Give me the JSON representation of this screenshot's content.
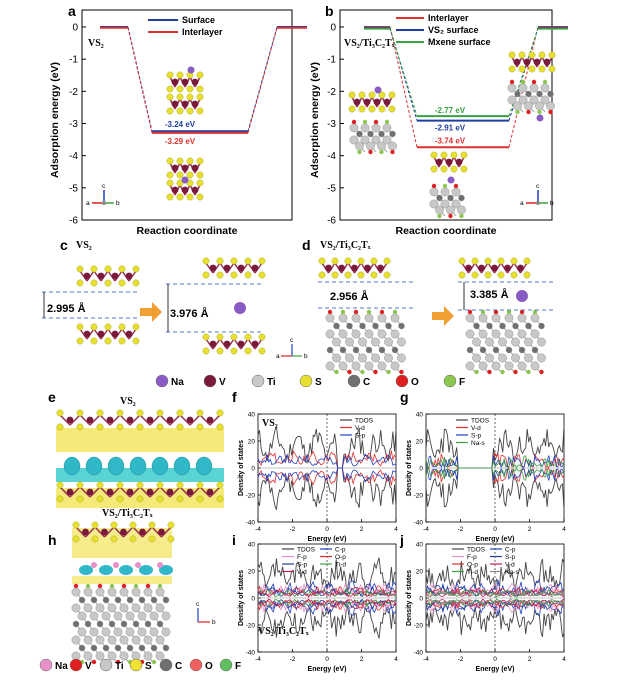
{
  "panels": {
    "a": {
      "label": "a",
      "title": "VS₂",
      "xlabel": "Reaction coordinate",
      "ylabel": "Adsorption energy (eV)"
    },
    "b": {
      "label": "b",
      "title": "VS₂/Ti₃C₂Tₓ",
      "xlabel": "Reaction coordinate",
      "ylabel": "Adsorption energy (eV)"
    },
    "c": {
      "label": "c",
      "title": "VS₂",
      "dist1": "2.995 Å",
      "dist2": "3.976 Å"
    },
    "d": {
      "label": "d",
      "title": "VS₂/Ti₃C₂Tₓ",
      "dist1": "2.956 Å",
      "dist2": "3.385 Å"
    },
    "e": {
      "label": "e",
      "title": "VS₂"
    },
    "f": {
      "label": "f",
      "title": "VS₂",
      "xlabel": "Energy (eV)",
      "ylabel": "Density of states"
    },
    "g": {
      "label": "g",
      "xlabel": "Energy (eV)",
      "ylabel": "Density of states"
    },
    "h": {
      "label": "h",
      "title": "VS₂/Ti₃C₂Tₓ"
    },
    "i": {
      "label": "i",
      "title": "VS₂/Ti₃C₂Tₓ",
      "xlabel": "Energy (eV)",
      "ylabel": "Density of states"
    },
    "j": {
      "label": "j",
      "xlabel": "Energy (eV)",
      "ylabel": "Density of states"
    }
  },
  "element_key_top": [
    {
      "sym": "Na",
      "color": "#8a5bc4"
    },
    {
      "sym": "V",
      "color": "#7a1a3a"
    },
    {
      "sym": "Ti",
      "color": "#c8c8c8"
    },
    {
      "sym": "S",
      "color": "#e8e030"
    },
    {
      "sym": "C",
      "color": "#707070"
    },
    {
      "sym": "O",
      "color": "#e02020"
    },
    {
      "sym": "F",
      "color": "#8cc850"
    }
  ],
  "element_key_bottom": [
    {
      "sym": "Na",
      "color": "#e890c8"
    },
    {
      "sym": "V",
      "color": "#e02020"
    },
    {
      "sym": "Ti",
      "color": "#c8c8c8"
    },
    {
      "sym": "S",
      "color": "#f0e030"
    },
    {
      "sym": "C",
      "color": "#707070"
    },
    {
      "sym": "O",
      "color": "#f06060"
    },
    {
      "sym": "F",
      "color": "#60c060"
    }
  ],
  "axis_glyphs": {
    "a": "a",
    "b": "b",
    "c": "c"
  },
  "chart_data": [
    {
      "type": "line",
      "id": "a",
      "ylim": [
        -6,
        0
      ],
      "yticks": [
        "0",
        "-1",
        "-2",
        "-3",
        "-4",
        "-5",
        "-6"
      ],
      "series": [
        {
          "name": "Surface",
          "color": "#1f3f9f",
          "level": -3.24,
          "label": "-3.24 eV"
        },
        {
          "name": "Interlayer",
          "color": "#e03030",
          "level": -3.29,
          "label": "-3.29 eV"
        }
      ]
    },
    {
      "type": "line",
      "id": "b",
      "ylim": [
        -6,
        0
      ],
      "yticks": [
        "0",
        "-1",
        "-2",
        "-3",
        "-4",
        "-5",
        "-6"
      ],
      "series": [
        {
          "name": "Interlayer",
          "color": "#e03030",
          "level": -3.74,
          "label": "-3.74 eV"
        },
        {
          "name": "VS₂ surface",
          "color": "#1f3f9f",
          "level": -2.91,
          "label": "-2.91 eV"
        },
        {
          "name": "Mxene surface",
          "color": "#3aa040",
          "level": -2.77,
          "label": "-2.77 eV"
        }
      ]
    },
    {
      "type": "line",
      "id": "f",
      "xlim": [
        -4,
        4
      ],
      "ylim": [
        -40,
        40
      ],
      "xticks": [
        "-4",
        "-2",
        "0",
        "2",
        "4"
      ],
      "yticks": [
        "40",
        "20",
        "0",
        "-20",
        "-40"
      ],
      "legend": [
        {
          "name": "TDOS",
          "color": "#444444"
        },
        {
          "name": "V-d",
          "color": "#e03030"
        },
        {
          "name": "S-p",
          "color": "#2040c0"
        }
      ]
    },
    {
      "type": "line",
      "id": "g",
      "xlim": [
        -4,
        4
      ],
      "ylim": [
        -40,
        40
      ],
      "xticks": [
        "-4",
        "-2",
        "0",
        "2",
        "4"
      ],
      "yticks": [
        "40",
        "20",
        "0",
        "-20",
        "-40"
      ],
      "legend": [
        {
          "name": "TDOS",
          "color": "#444444"
        },
        {
          "name": "V-d",
          "color": "#e03030"
        },
        {
          "name": "S-p",
          "color": "#2040c0"
        },
        {
          "name": "Na-s",
          "color": "#3aa040"
        }
      ]
    },
    {
      "type": "line",
      "id": "i",
      "xlim": [
        -4,
        4
      ],
      "ylim": [
        -40,
        40
      ],
      "xticks": [
        "-4",
        "-2",
        "0",
        "2",
        "4"
      ],
      "yticks": [
        "40",
        "20",
        "0",
        "-20",
        "-40"
      ],
      "legend": [
        {
          "name": "TDOS",
          "color": "#444444"
        },
        {
          "name": "C-p",
          "color": "#2040c0"
        },
        {
          "name": "F-p",
          "color": "#e890c8"
        },
        {
          "name": "O-p",
          "color": "#e03030"
        },
        {
          "name": "S-p",
          "color": "#1f3f9f"
        },
        {
          "name": "Ti-d",
          "color": "#3aa040"
        },
        {
          "name": "V-d",
          "color": "#c02060"
        }
      ]
    },
    {
      "type": "line",
      "id": "j",
      "xlim": [
        -4,
        4
      ],
      "ylim": [
        -40,
        40
      ],
      "xticks": [
        "-4",
        "-2",
        "0",
        "2",
        "4"
      ],
      "yticks": [
        "40",
        "20",
        "0",
        "-20",
        "-40"
      ],
      "legend": [
        {
          "name": "TDOS",
          "color": "#444444"
        },
        {
          "name": "C-p",
          "color": "#2040c0"
        },
        {
          "name": "F-p",
          "color": "#e890c8"
        },
        {
          "name": "S-p",
          "color": "#1f3f9f"
        },
        {
          "name": "O-p",
          "color": "#e03030"
        },
        {
          "name": "V-d",
          "color": "#c02060"
        },
        {
          "name": "Ti-d",
          "color": "#3aa040"
        },
        {
          "name": "Na-s",
          "color": "#888888"
        }
      ]
    }
  ]
}
